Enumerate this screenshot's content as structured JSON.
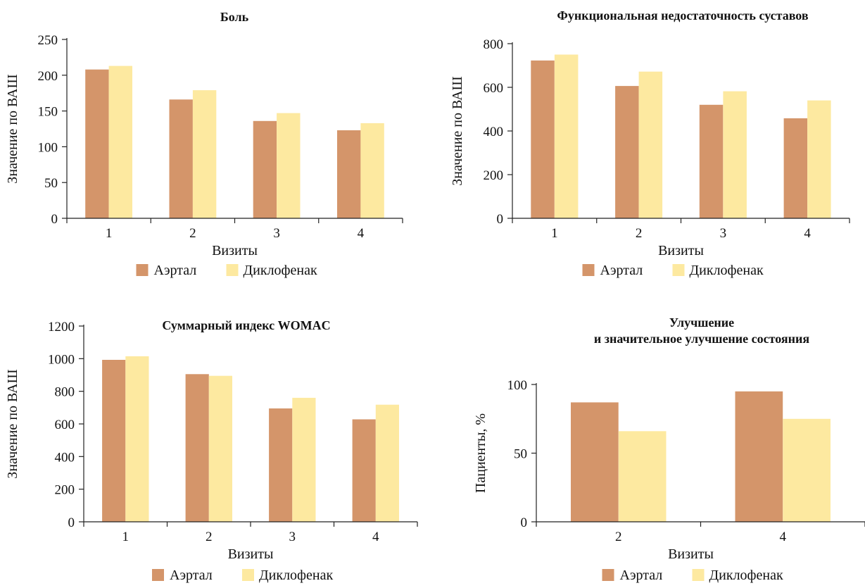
{
  "colors": {
    "aertal": "#d4956a",
    "diclofenac": "#fde9a0"
  },
  "chart_data": [
    {
      "type": "bar",
      "title": "Боль",
      "xlabel": "Визиты",
      "ylabel": "Значение по ВАШ",
      "categories": [
        "1",
        "2",
        "3",
        "4"
      ],
      "ylim": [
        0,
        250
      ],
      "yticks": [
        0,
        50,
        100,
        150,
        200,
        250
      ],
      "series": [
        {
          "name": "Аэртал",
          "values": [
            208,
            166,
            136,
            123
          ]
        },
        {
          "name": "Диклофенак",
          "values": [
            213,
            179,
            147,
            133
          ]
        }
      ],
      "grid": false,
      "legend": "bottom"
    },
    {
      "type": "bar",
      "title": "Функциональная недостаточность суставов",
      "xlabel": "Визиты",
      "ylabel": "Значение по ВАШ",
      "categories": [
        "1",
        "2",
        "3",
        "4"
      ],
      "ylim": [
        0,
        800
      ],
      "yticks": [
        0,
        200,
        400,
        600,
        800
      ],
      "series": [
        {
          "name": "Аэртал",
          "values": [
            723,
            606,
            520,
            458
          ]
        },
        {
          "name": "Диклофенак",
          "values": [
            750,
            672,
            582,
            540
          ]
        }
      ],
      "grid": false,
      "legend": "bottom"
    },
    {
      "type": "bar",
      "title": "Суммарный индекс WOMAC",
      "xlabel": "Визиты",
      "ylabel": "Значение по ВАШ",
      "categories": [
        "1",
        "2",
        "3",
        "4"
      ],
      "ylim": [
        0,
        1200
      ],
      "yticks": [
        0,
        200,
        400,
        600,
        800,
        1000,
        1200
      ],
      "series": [
        {
          "name": "Аэртал",
          "values": [
            993,
            905,
            695,
            628
          ]
        },
        {
          "name": "Диклофенак",
          "values": [
            1015,
            895,
            760,
            718
          ]
        }
      ],
      "grid": false,
      "legend": "bottom"
    },
    {
      "type": "bar",
      "title": "Улучшение\nи значительное улучшение состояния",
      "xlabel": "Визиты",
      "ylabel": "Пациенты, %",
      "categories": [
        "2",
        "4"
      ],
      "ylim": [
        0,
        100
      ],
      "yticks": [
        0,
        50,
        100
      ],
      "series": [
        {
          "name": "Аэртал",
          "values": [
            87,
            95
          ]
        },
        {
          "name": "Диклофенак",
          "values": [
            66,
            75
          ]
        }
      ],
      "grid": false,
      "legend": "bottom"
    }
  ]
}
